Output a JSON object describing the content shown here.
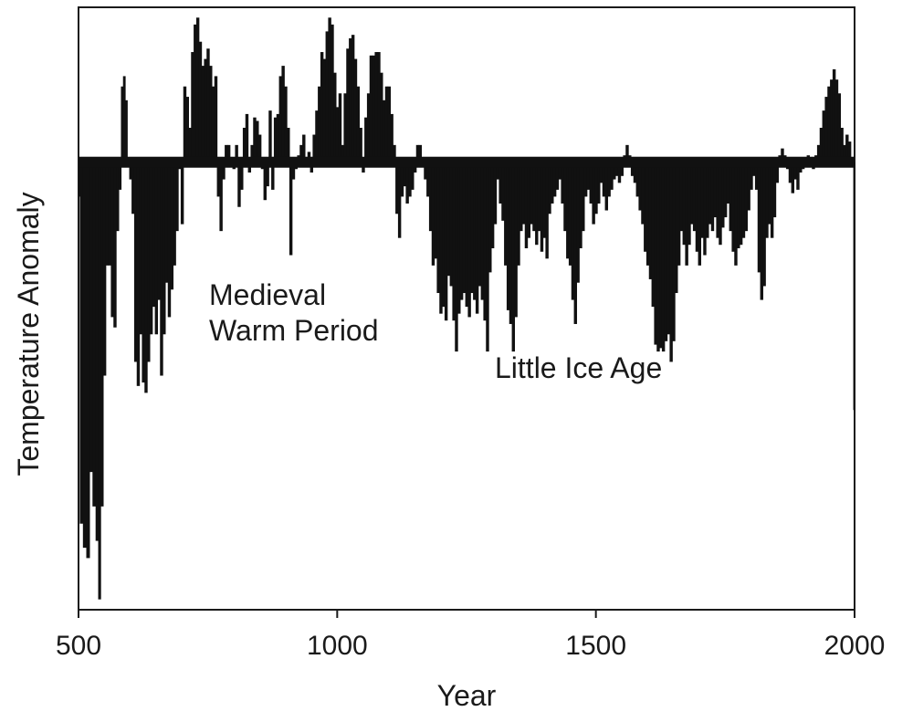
{
  "chart_data": {
    "type": "area",
    "title": "",
    "xlabel": "Year",
    "ylabel": "Temperature Anomaly",
    "xlim": [
      500,
      2000
    ],
    "ylim": [
      -1.3,
      0.45
    ],
    "baseline": 0,
    "grid": false,
    "legend": "none",
    "x_ticks": [
      500,
      1000,
      1500,
      2000
    ],
    "annotations": [
      {
        "id": "mwp",
        "lines": [
          "Medieval",
          "Warm Period"
        ],
        "x": 760,
        "y": -0.33
      },
      {
        "id": "lia",
        "lines": [
          "Little Ice Age"
        ],
        "x": 1310,
        "y": -0.6
      }
    ],
    "series": [
      {
        "name": "Temperature Anomaly",
        "color": "#111111",
        "points": [
          [
            500,
            -0.1
          ],
          [
            505,
            -1.05
          ],
          [
            512,
            -1.12
          ],
          [
            518,
            -1.15
          ],
          [
            524,
            -0.9
          ],
          [
            530,
            -1.0
          ],
          [
            536,
            -1.1
          ],
          [
            540,
            -1.27
          ],
          [
            545,
            -1.0
          ],
          [
            550,
            -0.62
          ],
          [
            555,
            -0.3
          ],
          [
            560,
            -0.3
          ],
          [
            565,
            -0.45
          ],
          [
            570,
            -0.48
          ],
          [
            575,
            -0.2
          ],
          [
            580,
            -0.08
          ],
          [
            584,
            0.22
          ],
          [
            588,
            0.25
          ],
          [
            592,
            0.18
          ],
          [
            596,
            -0.01
          ],
          [
            600,
            -0.05
          ],
          [
            605,
            -0.15
          ],
          [
            610,
            -0.58
          ],
          [
            615,
            -0.65
          ],
          [
            620,
            -0.5
          ],
          [
            625,
            -0.64
          ],
          [
            630,
            -0.67
          ],
          [
            635,
            -0.58
          ],
          [
            640,
            -0.5
          ],
          [
            645,
            -0.42
          ],
          [
            650,
            -0.5
          ],
          [
            655,
            -0.4
          ],
          [
            660,
            -0.62
          ],
          [
            665,
            -0.5
          ],
          [
            670,
            -0.35
          ],
          [
            675,
            -0.45
          ],
          [
            680,
            -0.37
          ],
          [
            685,
            -0.3
          ],
          [
            690,
            -0.2
          ],
          [
            695,
            -0.02
          ],
          [
            700,
            -0.18
          ],
          [
            705,
            0.22
          ],
          [
            710,
            0.19
          ],
          [
            715,
            0.1
          ],
          [
            720,
            0.32
          ],
          [
            725,
            0.4
          ],
          [
            730,
            0.42
          ],
          [
            735,
            0.35
          ],
          [
            740,
            0.28
          ],
          [
            745,
            0.3
          ],
          [
            750,
            0.33
          ],
          [
            755,
            0.28
          ],
          [
            760,
            0.22
          ],
          [
            765,
            0.25
          ],
          [
            770,
            -0.1
          ],
          [
            775,
            -0.2
          ],
          [
            780,
            -0.05
          ],
          [
            785,
            0.05
          ],
          [
            790,
            0.05
          ],
          [
            795,
            0.0
          ],
          [
            800,
            -0.02
          ],
          [
            805,
            0.05
          ],
          [
            810,
            -0.13
          ],
          [
            815,
            -0.08
          ],
          [
            820,
            0.1
          ],
          [
            825,
            0.14
          ],
          [
            830,
            -0.03
          ],
          [
            835,
            0.05
          ],
          [
            840,
            0.13
          ],
          [
            845,
            0.12
          ],
          [
            850,
            0.08
          ],
          [
            855,
            -0.02
          ],
          [
            860,
            -0.11
          ],
          [
            865,
            -0.07
          ],
          [
            870,
            0.15
          ],
          [
            875,
            -0.08
          ],
          [
            880,
            0.13
          ],
          [
            885,
            0.14
          ],
          [
            890,
            0.25
          ],
          [
            895,
            0.28
          ],
          [
            900,
            0.22
          ],
          [
            905,
            0.1
          ],
          [
            910,
            -0.27
          ],
          [
            915,
            -0.05
          ],
          [
            920,
            -0.02
          ],
          [
            925,
            0.02
          ],
          [
            930,
            0.05
          ],
          [
            935,
            0.08
          ],
          [
            940,
            0.0
          ],
          [
            945,
            0.03
          ],
          [
            950,
            -0.03
          ],
          [
            955,
            0.08
          ],
          [
            960,
            0.15
          ],
          [
            965,
            0.22
          ],
          [
            970,
            0.32
          ],
          [
            975,
            0.3
          ],
          [
            980,
            0.38
          ],
          [
            985,
            0.42
          ],
          [
            990,
            0.4
          ],
          [
            995,
            0.26
          ],
          [
            1000,
            0.16
          ],
          [
            1005,
            0.2
          ],
          [
            1010,
            0.05
          ],
          [
            1015,
            0.2
          ],
          [
            1020,
            0.33
          ],
          [
            1025,
            0.36
          ],
          [
            1030,
            0.37
          ],
          [
            1035,
            0.3
          ],
          [
            1040,
            0.22
          ],
          [
            1045,
            0.1
          ],
          [
            1050,
            -0.03
          ],
          [
            1055,
            0.13
          ],
          [
            1060,
            0.2
          ],
          [
            1065,
            0.31
          ],
          [
            1070,
            0.31
          ],
          [
            1075,
            0.32
          ],
          [
            1080,
            0.32
          ],
          [
            1085,
            0.26
          ],
          [
            1090,
            0.18
          ],
          [
            1095,
            0.22
          ],
          [
            1100,
            0.22
          ],
          [
            1105,
            0.14
          ],
          [
            1110,
            0.05
          ],
          [
            1115,
            -0.15
          ],
          [
            1120,
            -0.22
          ],
          [
            1125,
            -0.1
          ],
          [
            1130,
            -0.07
          ],
          [
            1135,
            -0.12
          ],
          [
            1140,
            -0.1
          ],
          [
            1145,
            -0.08
          ],
          [
            1150,
            -0.03
          ],
          [
            1155,
            0.05
          ],
          [
            1160,
            0.05
          ],
          [
            1165,
            0.0
          ],
          [
            1170,
            -0.05
          ],
          [
            1175,
            -0.1
          ],
          [
            1180,
            -0.2
          ],
          [
            1185,
            -0.3
          ],
          [
            1190,
            -0.28
          ],
          [
            1195,
            -0.38
          ],
          [
            1200,
            -0.44
          ],
          [
            1205,
            -0.42
          ],
          [
            1210,
            -0.46
          ],
          [
            1215,
            -0.33
          ],
          [
            1220,
            -0.36
          ],
          [
            1225,
            -0.46
          ],
          [
            1230,
            -0.55
          ],
          [
            1235,
            -0.44
          ],
          [
            1240,
            -0.4
          ],
          [
            1245,
            -0.38
          ],
          [
            1250,
            -0.42
          ],
          [
            1255,
            -0.45
          ],
          [
            1260,
            -0.38
          ],
          [
            1265,
            -0.4
          ],
          [
            1270,
            -0.44
          ],
          [
            1275,
            -0.36
          ],
          [
            1280,
            -0.4
          ],
          [
            1285,
            -0.46
          ],
          [
            1290,
            -0.55
          ],
          [
            1295,
            -0.32
          ],
          [
            1300,
            -0.25
          ],
          [
            1305,
            -0.18
          ],
          [
            1310,
            -0.05
          ],
          [
            1315,
            -0.12
          ],
          [
            1320,
            -0.17
          ],
          [
            1325,
            -0.3
          ],
          [
            1330,
            -0.43
          ],
          [
            1335,
            -0.47
          ],
          [
            1340,
            -0.55
          ],
          [
            1345,
            -0.45
          ],
          [
            1350,
            -0.3
          ],
          [
            1355,
            -0.2
          ],
          [
            1360,
            -0.18
          ],
          [
            1365,
            -0.25
          ],
          [
            1370,
            -0.22
          ],
          [
            1375,
            -0.18
          ],
          [
            1380,
            -0.2
          ],
          [
            1385,
            -0.24
          ],
          [
            1390,
            -0.2
          ],
          [
            1395,
            -0.26
          ],
          [
            1400,
            -0.22
          ],
          [
            1405,
            -0.28
          ],
          [
            1410,
            -0.15
          ],
          [
            1415,
            -0.12
          ],
          [
            1420,
            -0.1
          ],
          [
            1425,
            -0.08
          ],
          [
            1430,
            -0.05
          ],
          [
            1435,
            -0.12
          ],
          [
            1440,
            -0.2
          ],
          [
            1445,
            -0.28
          ],
          [
            1450,
            -0.3
          ],
          [
            1455,
            -0.4
          ],
          [
            1460,
            -0.47
          ],
          [
            1465,
            -0.35
          ],
          [
            1470,
            -0.25
          ],
          [
            1475,
            -0.2
          ],
          [
            1480,
            -0.1
          ],
          [
            1485,
            -0.08
          ],
          [
            1490,
            -0.12
          ],
          [
            1495,
            -0.18
          ],
          [
            1500,
            -0.15
          ],
          [
            1505,
            -0.12
          ],
          [
            1510,
            -0.06
          ],
          [
            1515,
            -0.1
          ],
          [
            1520,
            -0.14
          ],
          [
            1525,
            -0.1
          ],
          [
            1530,
            -0.08
          ],
          [
            1535,
            -0.05
          ],
          [
            1540,
            -0.04
          ],
          [
            1545,
            -0.06
          ],
          [
            1550,
            -0.04
          ],
          [
            1555,
            0.02
          ],
          [
            1560,
            0.05
          ],
          [
            1565,
            0.02
          ],
          [
            1570,
            -0.04
          ],
          [
            1575,
            -0.06
          ],
          [
            1580,
            -0.1
          ],
          [
            1585,
            -0.14
          ],
          [
            1590,
            -0.18
          ],
          [
            1595,
            -0.26
          ],
          [
            1600,
            -0.3
          ],
          [
            1605,
            -0.34
          ],
          [
            1610,
            -0.42
          ],
          [
            1615,
            -0.53
          ],
          [
            1620,
            -0.55
          ],
          [
            1625,
            -0.54
          ],
          [
            1630,
            -0.55
          ],
          [
            1635,
            -0.52
          ],
          [
            1640,
            -0.5
          ],
          [
            1645,
            -0.58
          ],
          [
            1650,
            -0.52
          ],
          [
            1655,
            -0.38
          ],
          [
            1660,
            -0.3
          ],
          [
            1665,
            -0.2
          ],
          [
            1670,
            -0.24
          ],
          [
            1675,
            -0.3
          ],
          [
            1680,
            -0.24
          ],
          [
            1685,
            -0.18
          ],
          [
            1690,
            -0.2
          ],
          [
            1695,
            -0.26
          ],
          [
            1700,
            -0.3
          ],
          [
            1705,
            -0.22
          ],
          [
            1710,
            -0.27
          ],
          [
            1715,
            -0.22
          ],
          [
            1720,
            -0.18
          ],
          [
            1725,
            -0.2
          ],
          [
            1730,
            -0.16
          ],
          [
            1735,
            -0.22
          ],
          [
            1740,
            -0.24
          ],
          [
            1745,
            -0.19
          ],
          [
            1750,
            -0.16
          ],
          [
            1755,
            -0.12
          ],
          [
            1760,
            -0.2
          ],
          [
            1765,
            -0.26
          ],
          [
            1770,
            -0.3
          ],
          [
            1775,
            -0.25
          ],
          [
            1780,
            -0.24
          ],
          [
            1785,
            -0.22
          ],
          [
            1790,
            -0.2
          ],
          [
            1795,
            -0.14
          ],
          [
            1800,
            -0.08
          ],
          [
            1805,
            -0.04
          ],
          [
            1810,
            -0.08
          ],
          [
            1815,
            -0.32
          ],
          [
            1820,
            -0.4
          ],
          [
            1825,
            -0.36
          ],
          [
            1830,
            -0.22
          ],
          [
            1835,
            -0.18
          ],
          [
            1840,
            -0.22
          ],
          [
            1845,
            -0.16
          ],
          [
            1850,
            -0.06
          ],
          [
            1855,
            0.02
          ],
          [
            1860,
            0.04
          ],
          [
            1865,
            0.02
          ],
          [
            1870,
            -0.02
          ],
          [
            1875,
            -0.06
          ],
          [
            1880,
            -0.09
          ],
          [
            1885,
            -0.05
          ],
          [
            1890,
            -0.08
          ],
          [
            1895,
            -0.03
          ],
          [
            1900,
            -0.02
          ],
          [
            1905,
            0.0
          ],
          [
            1910,
            0.02
          ],
          [
            1915,
            0.0
          ],
          [
            1920,
            -0.02
          ],
          [
            1925,
            0.02
          ],
          [
            1930,
            0.05
          ],
          [
            1935,
            0.1
          ],
          [
            1940,
            0.15
          ],
          [
            1945,
            0.19
          ],
          [
            1950,
            0.22
          ],
          [
            1955,
            0.24
          ],
          [
            1960,
            0.27
          ],
          [
            1965,
            0.24
          ],
          [
            1970,
            0.2
          ],
          [
            1975,
            0.1
          ],
          [
            1980,
            0.05
          ],
          [
            1985,
            0.08
          ],
          [
            1990,
            0.06
          ],
          [
            1995,
            0.0
          ],
          [
            2000,
            -0.72
          ]
        ]
      }
    ]
  }
}
